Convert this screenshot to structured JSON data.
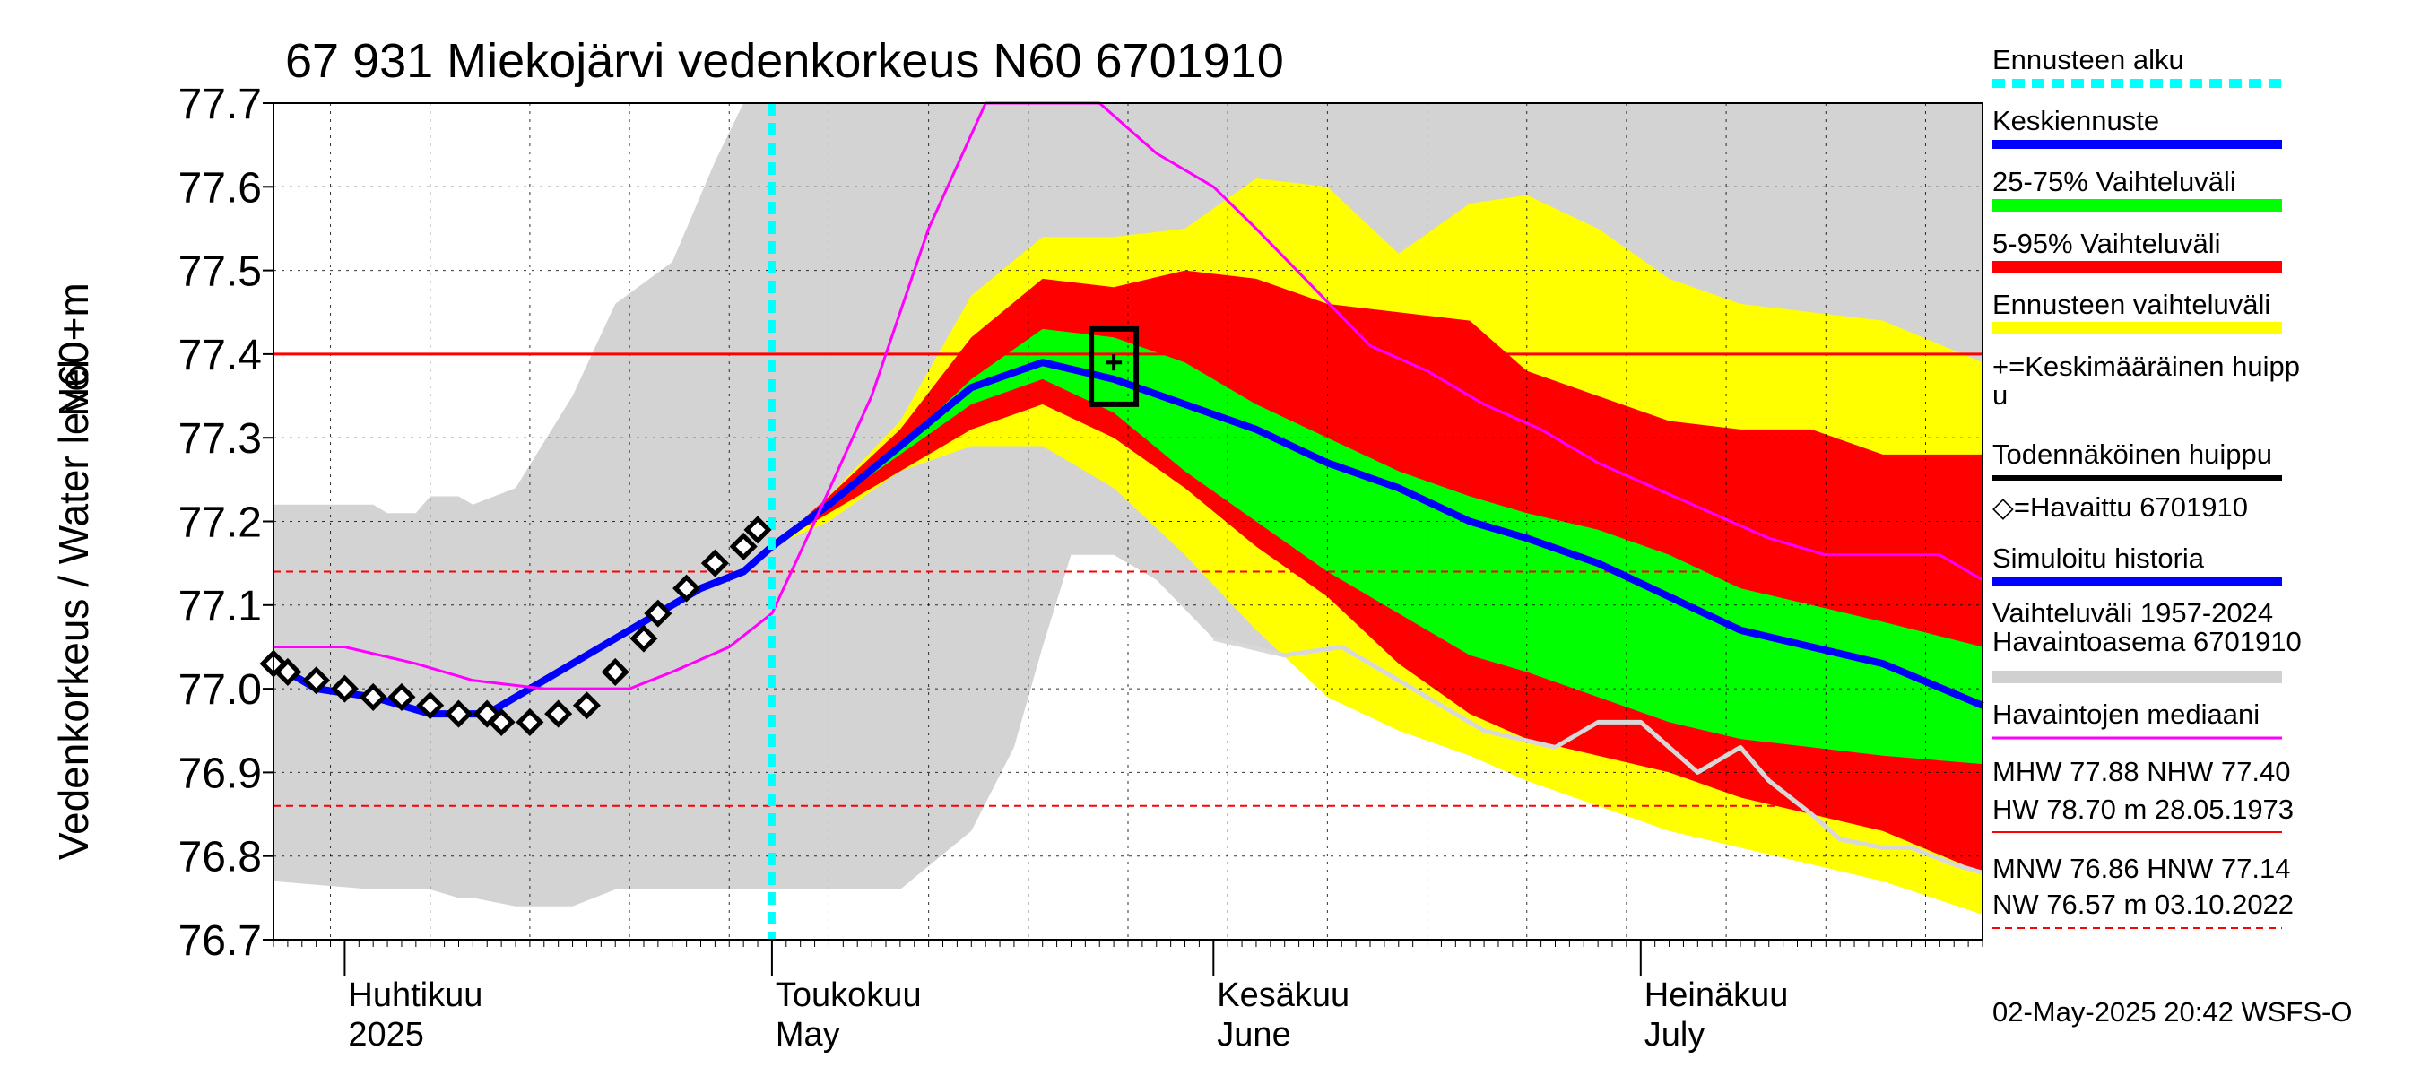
{
  "chart_data": {
    "type": "area",
    "title": "67 931 Miekojärvi vedenkorkeus N60 6701910",
    "ylabel_top": "N60+m",
    "ylabel": "Vedenkorkeus / Water level",
    "ylim": [
      76.7,
      77.7
    ],
    "y_ticks": [
      "77.7",
      "77.6",
      "77.5",
      "77.4",
      "77.3",
      "77.2",
      "77.1",
      "77.0",
      "76.9",
      "76.8",
      "76.7"
    ],
    "x_start": "2025-03-27",
    "x_end": "2025-07-25",
    "forecast_start": "2025-05-01",
    "grid": true,
    "legend_position": "right",
    "x_labels": [
      {
        "fi": "Huhtikuu",
        "en": "2025",
        "date": "2025-04-01"
      },
      {
        "fi": "Toukokuu",
        "en": "May",
        "date": "2025-05-01"
      },
      {
        "fi": "Kesäkuu",
        "en": "June",
        "date": "2025-06-01"
      },
      {
        "fi": "Heinäkuu",
        "en": "July",
        "date": "2025-07-01"
      }
    ],
    "reference_lines": [
      {
        "name": "NHW",
        "value": 77.4,
        "color": "#ff0000",
        "style": "solid"
      },
      {
        "name": "HNW",
        "value": 77.14,
        "color": "#ff0000",
        "style": "dashed"
      },
      {
        "name": "MNW",
        "value": 76.86,
        "color": "#ff0000",
        "style": "dashed"
      }
    ],
    "bands": {
      "history_range": {
        "dates": [
          "2025-03-27",
          "2025-04-03",
          "2025-04-04",
          "2025-04-06",
          "2025-04-07",
          "2025-04-09",
          "2025-04-10",
          "2025-04-13",
          "2025-04-17",
          "2025-04-20",
          "2025-04-24",
          "2025-04-27",
          "2025-04-29",
          "2025-05-10",
          "2025-05-15",
          "2025-05-18",
          "2025-05-20",
          "2025-05-22",
          "2025-05-25",
          "2025-05-28",
          "2025-06-01",
          "2025-06-06",
          "2025-06-10",
          "2025-06-15",
          "2025-06-20",
          "2025-06-25",
          "2025-06-30",
          "2025-07-05",
          "2025-07-10",
          "2025-07-15",
          "2025-07-20",
          "2025-07-25"
        ],
        "upper": [
          77.22,
          77.22,
          77.21,
          77.21,
          77.23,
          77.23,
          77.22,
          77.24,
          77.35,
          77.46,
          77.51,
          77.63,
          77.7,
          77.7,
          77.7,
          77.7,
          77.7,
          77.7,
          77.7,
          77.7,
          77.7,
          77.7,
          77.7,
          77.7,
          77.7,
          77.7,
          77.7,
          77.7,
          77.7,
          77.7,
          77.7,
          77.7
        ],
        "lower": [
          76.77,
          76.76,
          76.76,
          76.76,
          76.76,
          76.75,
          76.75,
          76.74,
          76.74,
          76.76,
          76.76,
          76.76,
          76.76,
          76.76,
          76.83,
          76.93,
          77.05,
          77.16,
          77.16,
          77.13,
          77.06,
          77.04,
          77.05,
          77.0,
          76.95,
          76.92,
          76.88,
          76.85,
          76.82,
          76.79,
          76.77,
          76.75
        ]
      },
      "forecast_range": {
        "dates": [
          "2025-05-01",
          "2025-05-05",
          "2025-05-10",
          "2025-05-15",
          "2025-05-20",
          "2025-05-25",
          "2025-05-30",
          "2025-06-04",
          "2025-06-09",
          "2025-06-14",
          "2025-06-19",
          "2025-06-23",
          "2025-06-28",
          "2025-07-03",
          "2025-07-08",
          "2025-07-13",
          "2025-07-18",
          "2025-07-25"
        ],
        "upper": [
          77.17,
          77.23,
          77.32,
          77.47,
          77.54,
          77.54,
          77.55,
          77.61,
          77.6,
          77.52,
          77.58,
          77.59,
          77.55,
          77.49,
          77.46,
          77.45,
          77.44,
          77.39
        ],
        "lower": [
          77.17,
          77.2,
          77.26,
          77.29,
          77.29,
          77.24,
          77.16,
          77.07,
          76.99,
          76.95,
          76.92,
          76.89,
          76.86,
          76.83,
          76.81,
          76.79,
          76.77,
          76.73
        ]
      },
      "p5_95": {
        "dates": [
          "2025-05-01",
          "2025-05-05",
          "2025-05-10",
          "2025-05-15",
          "2025-05-20",
          "2025-05-25",
          "2025-05-30",
          "2025-06-04",
          "2025-06-09",
          "2025-06-14",
          "2025-06-19",
          "2025-06-23",
          "2025-06-28",
          "2025-07-03",
          "2025-07-08",
          "2025-07-13",
          "2025-07-18",
          "2025-07-25"
        ],
        "upper": [
          77.17,
          77.23,
          77.31,
          77.42,
          77.49,
          77.48,
          77.5,
          77.49,
          77.46,
          77.45,
          77.44,
          77.38,
          77.35,
          77.32,
          77.31,
          77.31,
          77.28,
          77.28
        ],
        "lower": [
          77.17,
          77.21,
          77.26,
          77.31,
          77.34,
          77.3,
          77.24,
          77.17,
          77.11,
          77.03,
          76.97,
          76.94,
          76.92,
          76.9,
          76.87,
          76.85,
          76.83,
          76.78
        ]
      },
      "p25_75": {
        "dates": [
          "2025-05-01",
          "2025-05-05",
          "2025-05-10",
          "2025-05-15",
          "2025-05-20",
          "2025-05-25",
          "2025-05-30",
          "2025-06-04",
          "2025-06-09",
          "2025-06-14",
          "2025-06-19",
          "2025-06-23",
          "2025-06-28",
          "2025-07-03",
          "2025-07-08",
          "2025-07-13",
          "2025-07-18",
          "2025-07-25"
        ],
        "upper": [
          77.17,
          77.22,
          77.29,
          77.37,
          77.43,
          77.42,
          77.39,
          77.34,
          77.3,
          77.26,
          77.23,
          77.21,
          77.19,
          77.16,
          77.12,
          77.1,
          77.08,
          77.05
        ],
        "lower": [
          77.17,
          77.22,
          77.28,
          77.34,
          77.37,
          77.33,
          77.26,
          77.2,
          77.14,
          77.09,
          77.04,
          77.02,
          76.99,
          76.96,
          76.94,
          76.93,
          76.92,
          76.91
        ]
      }
    },
    "series": [
      {
        "name": "Keskiennuste",
        "color": "#0000ff",
        "dates": [
          "2025-05-01",
          "2025-05-05",
          "2025-05-10",
          "2025-05-15",
          "2025-05-20",
          "2025-05-25",
          "2025-05-30",
          "2025-06-04",
          "2025-06-09",
          "2025-06-14",
          "2025-06-19",
          "2025-06-23",
          "2025-06-28",
          "2025-07-03",
          "2025-07-08",
          "2025-07-13",
          "2025-07-18",
          "2025-07-25"
        ],
        "values": [
          77.17,
          77.22,
          77.29,
          77.36,
          77.39,
          77.37,
          77.34,
          77.31,
          77.27,
          77.24,
          77.2,
          77.18,
          77.15,
          77.11,
          77.07,
          77.05,
          77.03,
          76.98
        ]
      },
      {
        "name": "Simuloitu historia",
        "color": "#0000ff",
        "dates": [
          "2025-03-27",
          "2025-03-30",
          "2025-04-03",
          "2025-04-07",
          "2025-04-11",
          "2025-04-14",
          "2025-04-17",
          "2025-04-20",
          "2025-04-23",
          "2025-04-26",
          "2025-04-29",
          "2025-05-01"
        ],
        "values": [
          77.03,
          77.0,
          76.99,
          76.97,
          76.97,
          77.0,
          77.03,
          77.06,
          77.09,
          77.12,
          77.14,
          77.17
        ]
      },
      {
        "name": "Havaintojen mediaani",
        "color": "#ff00ff",
        "dates": [
          "2025-03-27",
          "2025-04-01",
          "2025-04-06",
          "2025-04-10",
          "2025-04-15",
          "2025-04-21",
          "2025-04-24",
          "2025-04-28",
          "2025-05-01",
          "2025-05-04",
          "2025-05-08",
          "2025-05-12",
          "2025-05-16",
          "2025-05-20",
          "2025-05-24",
          "2025-05-28",
          "2025-06-01",
          "2025-06-04",
          "2025-06-08",
          "2025-06-12",
          "2025-06-16",
          "2025-06-20",
          "2025-06-24",
          "2025-06-28",
          "2025-07-02",
          "2025-07-06",
          "2025-07-10",
          "2025-07-14",
          "2025-07-18",
          "2025-07-22",
          "2025-07-25"
        ],
        "values": [
          77.05,
          77.05,
          77.03,
          77.01,
          77.0,
          77.0,
          77.02,
          77.05,
          77.09,
          77.2,
          77.35,
          77.55,
          77.7,
          77.75,
          77.72,
          77.64,
          77.6,
          77.55,
          77.48,
          77.41,
          77.38,
          77.34,
          77.31,
          77.27,
          77.24,
          77.21,
          77.18,
          77.16,
          77.16,
          77.16,
          77.13
        ]
      },
      {
        "name": "Vaihteluväli 1957-2024 alaraja",
        "color": "#d8d8d8",
        "dates": [
          "2025-06-01",
          "2025-06-06",
          "2025-06-10",
          "2025-06-15",
          "2025-06-20",
          "2025-06-25",
          "2025-06-28",
          "2025-07-01",
          "2025-07-05",
          "2025-07-08",
          "2025-07-10",
          "2025-07-13",
          "2025-07-15",
          "2025-07-18",
          "2025-07-20",
          "2025-07-23",
          "2025-07-25"
        ],
        "values": [
          77.06,
          77.04,
          77.05,
          77.0,
          76.95,
          76.93,
          76.96,
          76.96,
          76.9,
          76.93,
          76.89,
          76.85,
          76.82,
          76.81,
          76.81,
          76.79,
          76.78
        ]
      }
    ],
    "observations": {
      "name": "Havaittu 6701910",
      "dates": [
        "2025-03-27",
        "2025-03-28",
        "2025-03-30",
        "2025-04-01",
        "2025-04-03",
        "2025-04-05",
        "2025-04-07",
        "2025-04-09",
        "2025-04-11",
        "2025-04-12",
        "2025-04-14",
        "2025-04-16",
        "2025-04-18",
        "2025-04-20",
        "2025-04-22",
        "2025-04-23",
        "2025-04-25",
        "2025-04-27",
        "2025-04-29",
        "2025-04-30"
      ],
      "values": [
        77.03,
        77.02,
        77.01,
        77.0,
        76.99,
        76.99,
        76.98,
        76.97,
        76.97,
        76.96,
        76.96,
        76.97,
        76.98,
        77.02,
        77.06,
        77.09,
        77.12,
        77.15,
        77.17,
        77.19
      ]
    },
    "peak": {
      "date": "2025-05-25",
      "value": 77.39,
      "box_top": 77.43,
      "box_bottom": 77.34
    },
    "legend": [
      {
        "label": "Ennusteen alku",
        "color": "#00ffff",
        "style": "dashed"
      },
      {
        "label": "Keskiennuste",
        "color": "#0000ff",
        "style": "solid"
      },
      {
        "label": "25-75% Vaihteluväli",
        "color": "#00ff00",
        "style": "band"
      },
      {
        "label": "5-95% Vaihteluväli",
        "color": "#ff0000",
        "style": "band"
      },
      {
        "label": "Ennusteen vaihteluväli",
        "color": "#ffff00",
        "style": "band"
      },
      {
        "label_line1": "+=Keskimääräinen huipp",
        "label_line2": "u",
        "style": "none"
      },
      {
        "label": "Todennäköinen huippu",
        "color": "#000000",
        "style": "solid"
      },
      {
        "label": "◇=Havaittu 6701910",
        "style": "none"
      },
      {
        "label": "Simuloitu historia",
        "color": "#0000ff",
        "style": "solid"
      },
      {
        "label_line1": "Vaihteluväli 1957-2024",
        "label_line2": " Havaintoasema 6701910",
        "color": "#d0d0d0",
        "style": "band"
      },
      {
        "label": "Havaintojen mediaani",
        "color": "#ff00ff",
        "style": "solid"
      }
    ],
    "stats": {
      "line1": "MHW  77.88 NHW  77.40",
      "line2": "HW  78.70 m 28.05.1973",
      "line3": "MNW  76.86 HNW  77.14",
      "line4": "NW  76.57 m 03.10.2022"
    },
    "timestamp": "02-May-2025 20:42 WSFS-O",
    "colors": {
      "history_band": "#d3d3d3",
      "forecast_band": "#ffff00",
      "p5_95": "#ff0000",
      "p25_75": "#00ff00",
      "mean_forecast": "#0000ff",
      "median": "#ff00ff",
      "forecast_start": "#00ffff",
      "reference": "#ff0000"
    }
  }
}
